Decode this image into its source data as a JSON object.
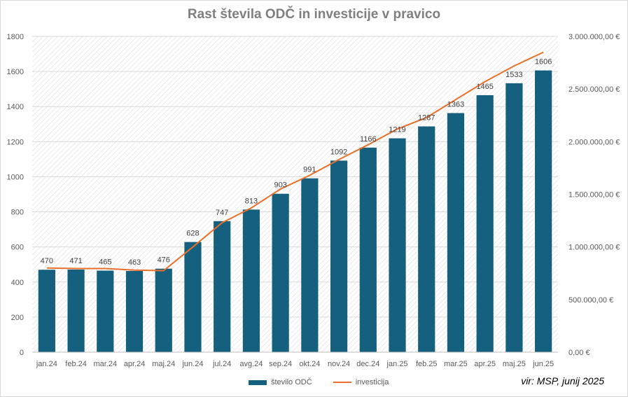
{
  "chart_data": {
    "type": "bar",
    "title": "Rast števila ODČ in investicije v pravico",
    "categories": [
      "jan.24",
      "feb.24",
      "mar.24",
      "apr.24",
      "maj.24",
      "jun.24",
      "jul.24",
      "avg.24",
      "sep.24",
      "okt.24",
      "nov.24",
      "dec.24",
      "jan.25",
      "feb.25",
      "mar.25",
      "apr.25",
      "maj.25",
      "jun.25"
    ],
    "series": [
      {
        "name": "število ODČ",
        "type": "bar",
        "axis": "left",
        "color": "#16607f",
        "values": [
          470,
          471,
          465,
          463,
          476,
          628,
          747,
          813,
          903,
          991,
          1092,
          1166,
          1219,
          1287,
          1363,
          1465,
          1533,
          1606
        ]
      },
      {
        "name": "investicija",
        "type": "line",
        "axis": "right",
        "color": "#e8702a",
        "values": [
          800000,
          795000,
          795000,
          780000,
          775000,
          1000000,
          1230000,
          1370000,
          1550000,
          1680000,
          1830000,
          1970000,
          2120000,
          2230000,
          2400000,
          2570000,
          2720000,
          2850000
        ]
      }
    ],
    "ylim": [
      0,
      1800
    ],
    "yticks": [
      "0",
      "200",
      "400",
      "600",
      "800",
      "1000",
      "1200",
      "1400",
      "1600",
      "1800"
    ],
    "y2lim": [
      0,
      3000000
    ],
    "y2ticks": [
      "0,00 €",
      "500.000,00 €",
      "1.000.000,00 €",
      "1.500.000,00 €",
      "2.000.000,00 €",
      "2.500.000,00 €",
      "3.000.000,00 €"
    ],
    "grid": true,
    "legend_position": "bottom"
  },
  "source_note": "vir: MSP, junij 2025"
}
